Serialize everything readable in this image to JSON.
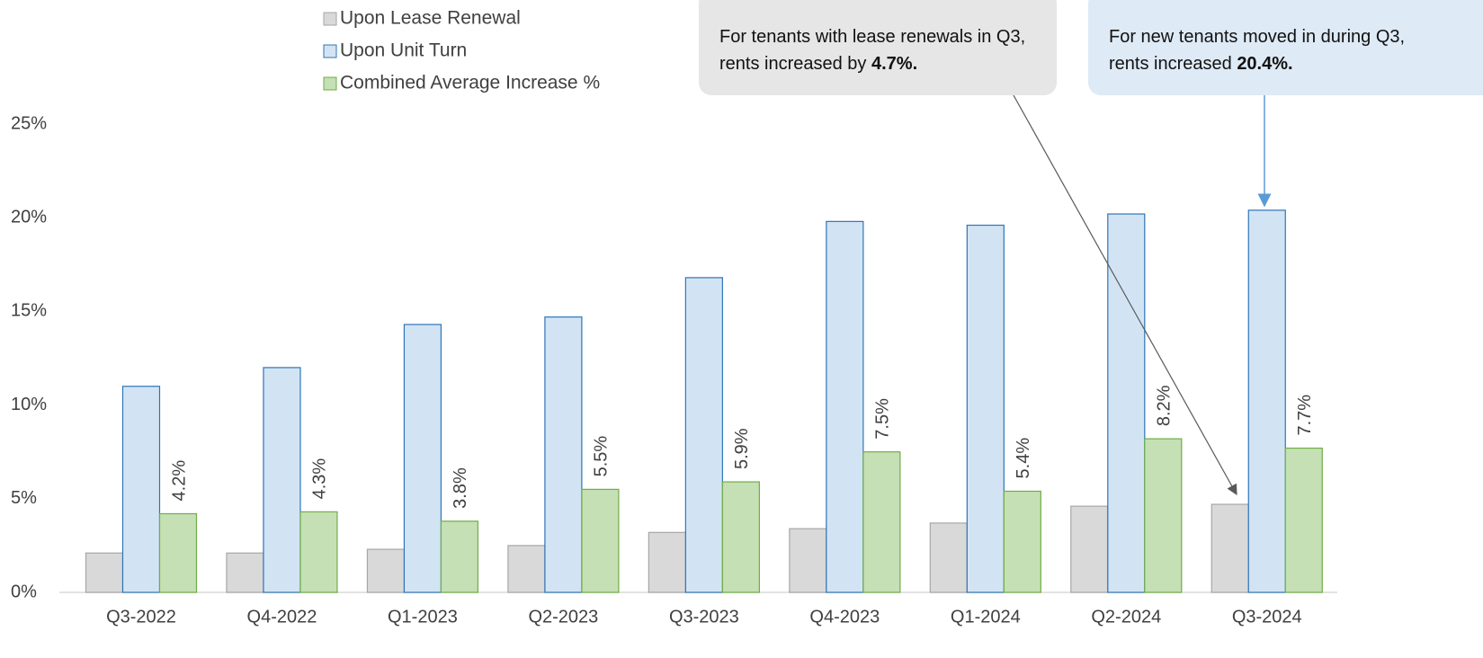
{
  "chart_data": {
    "type": "bar",
    "categories": [
      "Q3-2022",
      "Q4-2022",
      "Q1-2023",
      "Q2-2023",
      "Q3-2023",
      "Q4-2023",
      "Q1-2024",
      "Q2-2024",
      "Q3-2024"
    ],
    "series": [
      {
        "name": "Upon Lease Renewal",
        "color": "#d9d9d9",
        "stroke": "#a6a6a6",
        "values": [
          2.1,
          2.1,
          2.3,
          2.5,
          3.2,
          3.4,
          3.7,
          4.6,
          4.7
        ]
      },
      {
        "name": "Upon Unit Turn",
        "color": "#d2e4f4",
        "stroke": "#2e75b6",
        "values": [
          11.0,
          12.0,
          14.3,
          14.7,
          16.8,
          19.8,
          19.6,
          20.2,
          20.4
        ]
      },
      {
        "name": "Combined Average Increase %",
        "color": "#c5e0b4",
        "stroke": "#70ad47",
        "values": [
          4.2,
          4.3,
          3.8,
          5.5,
          5.9,
          7.5,
          5.4,
          8.2,
          7.7
        ],
        "value_labels": [
          "4.2%",
          "4.3%",
          "3.8%",
          "5.5%",
          "5.9%",
          "7.5%",
          "5.4%",
          "8.2%",
          "7.7%"
        ]
      }
    ],
    "ylim": [
      0,
      25
    ],
    "yticks": [
      {
        "value": 0,
        "label": "0%"
      },
      {
        "value": 5,
        "label": "5%"
      },
      {
        "value": 10,
        "label": "10%"
      },
      {
        "value": 15,
        "label": "15%"
      },
      {
        "value": 20,
        "label": "20%"
      },
      {
        "value": 25,
        "label": "25%"
      }
    ],
    "grid": false,
    "legend": "top",
    "annotations": [
      {
        "text": "For tenants with lease renewals in Q3, rents increased by",
        "highlight": "4.7%."
      },
      {
        "text": "For new tenants moved in during Q3, rents increased",
        "highlight": "20.4%."
      }
    ]
  }
}
